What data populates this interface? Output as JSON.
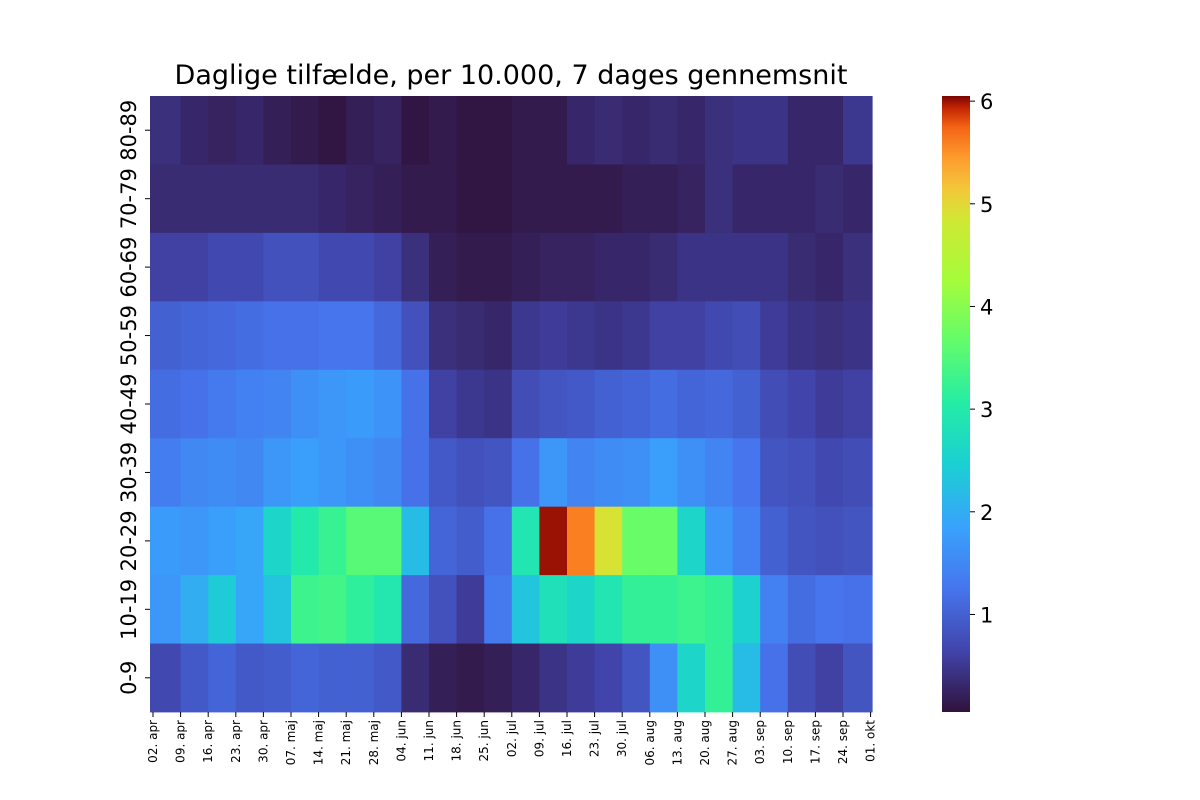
{
  "chart_data": {
    "type": "heatmap",
    "title": "Daglige tilfælde, per 10.000, 7 dages gennemsnit",
    "xlabel": "",
    "ylabel": "",
    "colormap": "turbo",
    "color_range": [
      0.05,
      6.05
    ],
    "colorbar_ticks": [
      1,
      2,
      3,
      4,
      5,
      6
    ],
    "x_tick_labels": [
      "02. apr",
      "09. apr",
      "16. apr",
      "23. apr",
      "30. apr",
      "07. maj",
      "14. maj",
      "21. maj",
      "28. maj",
      "04. jun",
      "11. jun",
      "18. jun",
      "25. jun",
      "02. jul",
      "09. jul",
      "16. jul",
      "23. jul",
      "30. jul",
      "06. aug",
      "13. aug",
      "20. aug",
      "27. aug",
      "03. sep",
      "10. sep",
      "17. sep",
      "24. sep",
      "01. okt"
    ],
    "rows": [
      {
        "label": "80-89",
        "values": [
          0.4,
          0.3,
          0.25,
          0.3,
          0.2,
          0.15,
          0.1,
          0.2,
          0.25,
          0.1,
          0.15,
          0.1,
          0.1,
          0.15,
          0.15,
          0.3,
          0.35,
          0.3,
          0.35,
          0.3,
          0.4,
          0.45,
          0.45,
          0.3,
          0.3,
          0.5
        ]
      },
      {
        "label": "70-79",
        "values": [
          0.35,
          0.35,
          0.35,
          0.35,
          0.35,
          0.35,
          0.3,
          0.25,
          0.2,
          0.15,
          0.15,
          0.1,
          0.1,
          0.15,
          0.15,
          0.15,
          0.15,
          0.2,
          0.2,
          0.25,
          0.4,
          0.3,
          0.3,
          0.3,
          0.35,
          0.3
        ]
      },
      {
        "label": "60-69",
        "values": [
          0.6,
          0.6,
          0.7,
          0.7,
          0.8,
          0.8,
          0.7,
          0.7,
          0.6,
          0.4,
          0.2,
          0.15,
          0.15,
          0.2,
          0.25,
          0.25,
          0.3,
          0.3,
          0.35,
          0.45,
          0.45,
          0.45,
          0.45,
          0.35,
          0.3,
          0.4
        ]
      },
      {
        "label": "50-59",
        "values": [
          1.0,
          1.05,
          1.1,
          1.15,
          1.2,
          1.2,
          1.25,
          1.25,
          1.1,
          0.8,
          0.4,
          0.35,
          0.3,
          0.5,
          0.55,
          0.5,
          0.45,
          0.5,
          0.6,
          0.6,
          0.7,
          0.75,
          0.55,
          0.45,
          0.4,
          0.45
        ]
      },
      {
        "label": "40-49",
        "values": [
          1.15,
          1.2,
          1.3,
          1.4,
          1.45,
          1.6,
          1.7,
          1.75,
          1.65,
          1.2,
          0.6,
          0.5,
          0.45,
          0.75,
          0.85,
          0.9,
          1.0,
          1.05,
          1.15,
          1.05,
          1.1,
          1.0,
          0.75,
          0.65,
          0.55,
          0.6
        ]
      },
      {
        "label": "30-39",
        "values": [
          1.35,
          1.5,
          1.55,
          1.5,
          1.7,
          1.8,
          1.7,
          1.6,
          1.5,
          1.2,
          0.9,
          0.8,
          0.85,
          1.2,
          1.7,
          1.45,
          1.55,
          1.6,
          1.8,
          1.6,
          1.45,
          1.25,
          0.85,
          0.8,
          0.7,
          0.75
        ]
      },
      {
        "label": "20-29",
        "values": [
          1.75,
          1.7,
          1.8,
          1.9,
          2.6,
          3.0,
          3.25,
          3.55,
          3.55,
          2.2,
          1.05,
          0.95,
          1.2,
          2.9,
          6.0,
          5.6,
          4.9,
          3.7,
          3.7,
          2.6,
          1.7,
          1.4,
          1.0,
          0.85,
          0.8,
          0.85
        ]
      },
      {
        "label": "10-19",
        "values": [
          1.7,
          2.0,
          2.4,
          1.9,
          2.3,
          3.3,
          3.35,
          3.15,
          2.95,
          1.1,
          0.8,
          0.55,
          1.3,
          2.3,
          2.8,
          2.6,
          2.9,
          3.2,
          3.2,
          3.3,
          3.2,
          2.5,
          1.4,
          1.15,
          1.25,
          1.2
        ]
      },
      {
        "label": "0-9",
        "values": [
          0.7,
          0.9,
          1.05,
          0.9,
          0.95,
          1.05,
          1.0,
          1.0,
          0.9,
          0.35,
          0.2,
          0.15,
          0.2,
          0.3,
          0.45,
          0.55,
          0.65,
          0.85,
          1.6,
          2.6,
          3.2,
          2.2,
          1.2,
          0.75,
          0.6,
          0.85
        ]
      }
    ]
  }
}
